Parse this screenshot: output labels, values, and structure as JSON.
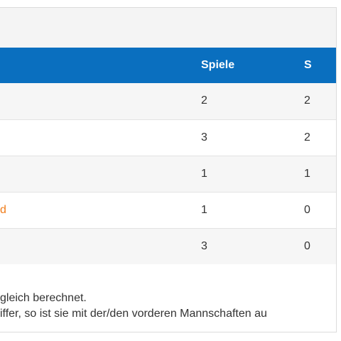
{
  "table": {
    "columns": {
      "team": "",
      "games": "Spiele",
      "wins": "S"
    },
    "rows": [
      {
        "team": "",
        "games": "2",
        "wins": "2"
      },
      {
        "team": "",
        "games": "3",
        "wins": "2"
      },
      {
        "team": "",
        "games": "1",
        "wins": "1"
      },
      {
        "team": "d",
        "games": "1",
        "wins": "0"
      },
      {
        "team": "",
        "games": "3",
        "wins": "0"
      }
    ]
  },
  "notes": {
    "line1": "gleich berechnet.",
    "line2": "iffer, so ist sie mit der/den vorderen Mannschaften au"
  },
  "colors": {
    "header_blue": "#0a6fbf",
    "link_orange": "#f07c1a"
  }
}
